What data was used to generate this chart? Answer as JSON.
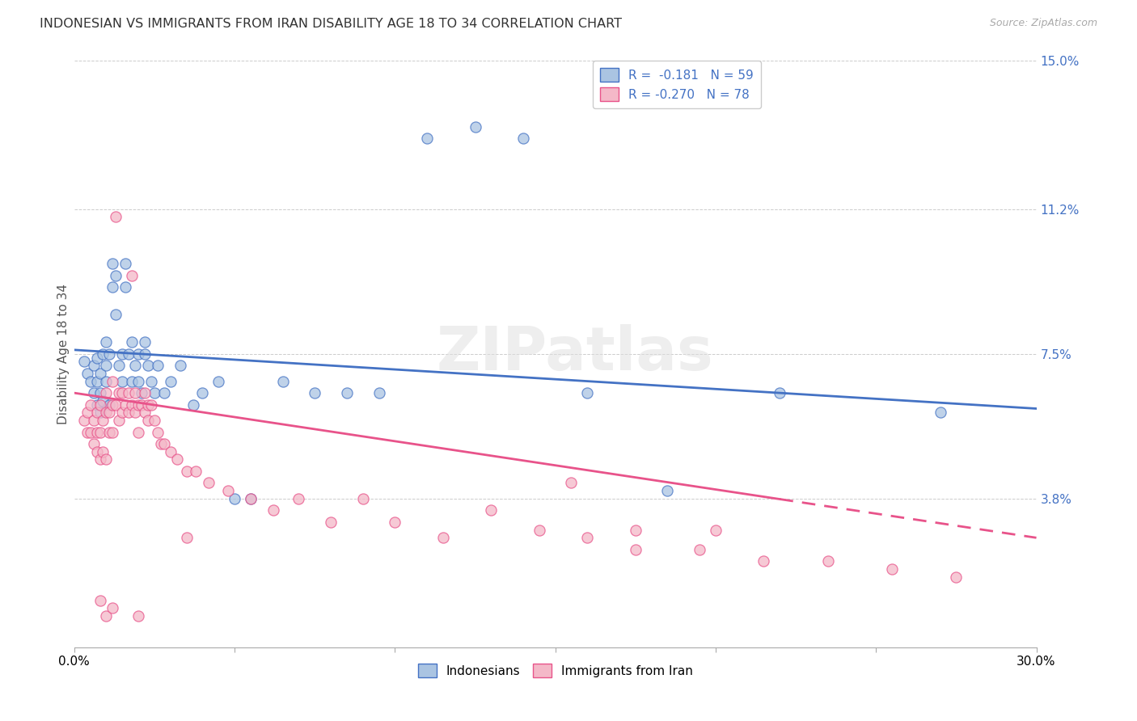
{
  "title": "INDONESIAN VS IMMIGRANTS FROM IRAN DISABILITY AGE 18 TO 34 CORRELATION CHART",
  "source": "Source: ZipAtlas.com",
  "ylabel": "Disability Age 18 to 34",
  "xlim": [
    0.0,
    0.3
  ],
  "ylim": [
    0.0,
    0.15
  ],
  "ytick_positions": [
    0.0,
    0.038,
    0.075,
    0.112,
    0.15
  ],
  "ytick_labels": [
    "",
    "3.8%",
    "7.5%",
    "11.2%",
    "15.0%"
  ],
  "legend_r1": "R =  -0.181",
  "legend_n1": "N = 59",
  "legend_r2": "R = -0.270",
  "legend_n2": "N = 78",
  "color_indonesian": "#aac4e2",
  "color_iran": "#f4b8c8",
  "color_line_indonesian": "#4472c4",
  "color_line_iran": "#e8538a",
  "watermark": "ZIPatlas",
  "indonesian_x": [
    0.003,
    0.004,
    0.005,
    0.006,
    0.006,
    0.007,
    0.007,
    0.007,
    0.008,
    0.008,
    0.008,
    0.009,
    0.009,
    0.01,
    0.01,
    0.01,
    0.011,
    0.011,
    0.012,
    0.012,
    0.013,
    0.013,
    0.014,
    0.015,
    0.015,
    0.016,
    0.016,
    0.017,
    0.018,
    0.018,
    0.019,
    0.02,
    0.02,
    0.021,
    0.022,
    0.022,
    0.023,
    0.024,
    0.025,
    0.026,
    0.028,
    0.03,
    0.033,
    0.037,
    0.04,
    0.045,
    0.05,
    0.055,
    0.065,
    0.075,
    0.085,
    0.095,
    0.11,
    0.125,
    0.14,
    0.16,
    0.185,
    0.22,
    0.27
  ],
  "indonesian_y": [
    0.073,
    0.07,
    0.068,
    0.065,
    0.072,
    0.062,
    0.068,
    0.074,
    0.06,
    0.065,
    0.07,
    0.063,
    0.075,
    0.068,
    0.072,
    0.078,
    0.062,
    0.075,
    0.092,
    0.098,
    0.095,
    0.085,
    0.072,
    0.068,
    0.075,
    0.092,
    0.098,
    0.075,
    0.068,
    0.078,
    0.072,
    0.068,
    0.075,
    0.065,
    0.075,
    0.078,
    0.072,
    0.068,
    0.065,
    0.072,
    0.065,
    0.068,
    0.072,
    0.062,
    0.065,
    0.068,
    0.038,
    0.038,
    0.068,
    0.065,
    0.065,
    0.065,
    0.13,
    0.133,
    0.13,
    0.065,
    0.04,
    0.065,
    0.06
  ],
  "iran_x": [
    0.003,
    0.004,
    0.004,
    0.005,
    0.005,
    0.006,
    0.006,
    0.007,
    0.007,
    0.007,
    0.008,
    0.008,
    0.008,
    0.009,
    0.009,
    0.01,
    0.01,
    0.01,
    0.011,
    0.011,
    0.012,
    0.012,
    0.012,
    0.013,
    0.013,
    0.014,
    0.014,
    0.015,
    0.015,
    0.016,
    0.017,
    0.017,
    0.018,
    0.018,
    0.019,
    0.019,
    0.02,
    0.02,
    0.021,
    0.022,
    0.022,
    0.023,
    0.023,
    0.024,
    0.025,
    0.026,
    0.027,
    0.028,
    0.03,
    0.032,
    0.035,
    0.038,
    0.042,
    0.048,
    0.055,
    0.062,
    0.07,
    0.08,
    0.09,
    0.1,
    0.115,
    0.13,
    0.145,
    0.16,
    0.175,
    0.195,
    0.215,
    0.235,
    0.255,
    0.275,
    0.155,
    0.175,
    0.2,
    0.035,
    0.01,
    0.012,
    0.008,
    0.02
  ],
  "iran_y": [
    0.058,
    0.06,
    0.055,
    0.062,
    0.055,
    0.058,
    0.052,
    0.06,
    0.055,
    0.05,
    0.062,
    0.055,
    0.048,
    0.058,
    0.05,
    0.065,
    0.06,
    0.048,
    0.06,
    0.055,
    0.068,
    0.062,
    0.055,
    0.11,
    0.062,
    0.065,
    0.058,
    0.065,
    0.06,
    0.062,
    0.065,
    0.06,
    0.095,
    0.062,
    0.065,
    0.06,
    0.062,
    0.055,
    0.062,
    0.065,
    0.06,
    0.062,
    0.058,
    0.062,
    0.058,
    0.055,
    0.052,
    0.052,
    0.05,
    0.048,
    0.045,
    0.045,
    0.042,
    0.04,
    0.038,
    0.035,
    0.038,
    0.032,
    0.038,
    0.032,
    0.028,
    0.035,
    0.03,
    0.028,
    0.025,
    0.025,
    0.022,
    0.022,
    0.02,
    0.018,
    0.042,
    0.03,
    0.03,
    0.028,
    0.008,
    0.01,
    0.012,
    0.008
  ]
}
